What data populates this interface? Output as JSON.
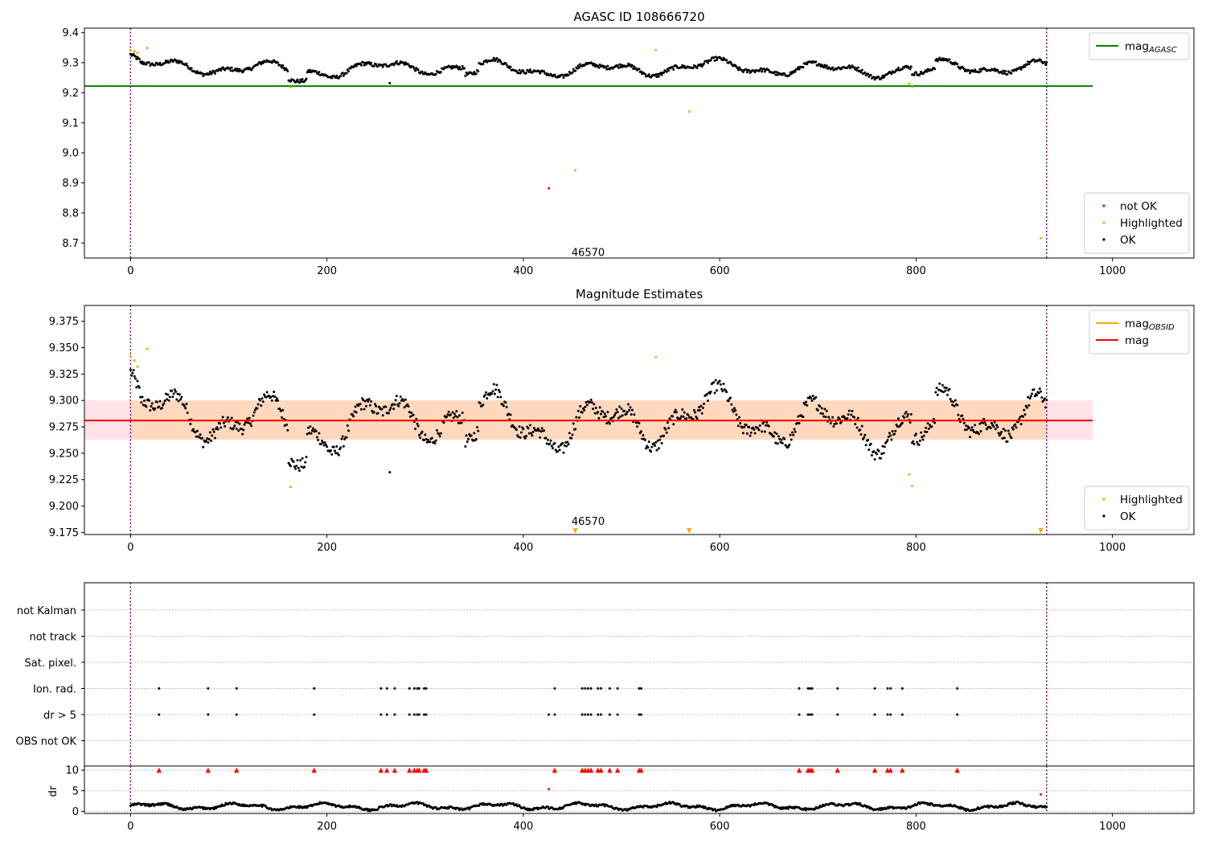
{
  "chart_data": [
    {
      "type": "scatter",
      "title": "AGASC ID 108666720",
      "xlim": [
        -47,
        1083
      ],
      "ylim": [
        8.65,
        9.415
      ],
      "xticks": [
        0,
        200,
        400,
        600,
        800,
        1000
      ],
      "yticks": [
        8.7,
        8.8,
        8.9,
        9.0,
        9.1,
        9.2,
        9.3,
        9.4
      ],
      "ytick_labels": [
        "8.7",
        "8.8",
        "8.9",
        "9.0",
        "9.1",
        "9.2",
        "9.3",
        "9.4"
      ],
      "obs_boundaries": [
        0,
        933
      ],
      "obsid_label": {
        "text": "46570",
        "x": 466,
        "y": 8.67
      },
      "hlines": [
        {
          "name": "mag_AGASC",
          "y": 9.222,
          "x": [
            -47,
            980
          ],
          "color": "#008000"
        }
      ],
      "series": [
        {
          "name": "not OK",
          "color": "#ff0000",
          "points": [
            [
              426,
              8.882
            ]
          ]
        },
        {
          "name": "Highlighted",
          "color": "#ffa500",
          "points": [
            [
              0,
              9.342
            ],
            [
              4,
              9.338
            ],
            [
              7,
              9.332
            ],
            [
              17,
              9.349
            ],
            [
              163,
              9.218
            ],
            [
              453,
              8.942
            ],
            [
              535,
              9.341
            ],
            [
              569,
              9.137
            ],
            [
              793,
              9.23
            ],
            [
              796,
              9.219
            ],
            [
              927,
              8.716
            ]
          ]
        },
        {
          "name": "OK",
          "color": "#000000",
          "baseline": "mag_series_main",
          "extra_points": [
            [
              264,
              9.232
            ]
          ]
        }
      ],
      "legends": [
        {
          "position": "upper-right",
          "entries": [
            {
              "label": "mag",
              "subscript": "AGASC",
              "color": "#008000",
              "kind": "line"
            }
          ]
        },
        {
          "position": "lower-right",
          "entries": [
            {
              "label": "not OK",
              "color": "#ff0000",
              "kind": "dot"
            },
            {
              "label": "Highlighted",
              "color": "#ffa500",
              "kind": "dot"
            },
            {
              "label": "OK",
              "color": "#000000",
              "kind": "dot"
            }
          ]
        }
      ]
    },
    {
      "type": "scatter",
      "title": "Magnitude Estimates",
      "xlim": [
        -47,
        1083
      ],
      "ylim": [
        9.173,
        9.39
      ],
      "xticks": [
        0,
        200,
        400,
        600,
        800,
        1000
      ],
      "yticks": [
        9.175,
        9.2,
        9.225,
        9.25,
        9.275,
        9.3,
        9.325,
        9.35,
        9.375
      ],
      "ytick_labels": [
        "9.175",
        "9.200",
        "9.225",
        "9.250",
        "9.275",
        "9.300",
        "9.325",
        "9.350",
        "9.375"
      ],
      "obs_boundaries": [
        0,
        933
      ],
      "obsid_label": {
        "text": "46570",
        "x": 466,
        "y": 9.179
      },
      "hlines": [
        {
          "name": "mag_OBSID",
          "y": 9.281,
          "x": [
            0,
            933
          ],
          "color": "#ffa500"
        },
        {
          "name": "mag",
          "y": 9.281,
          "x": [
            -47,
            980
          ],
          "color": "#ff0000"
        }
      ],
      "bands": [
        {
          "name": "mag band",
          "y": [
            9.263,
            9.3
          ],
          "x": [
            -47,
            980
          ],
          "color": "#ffc0cb"
        },
        {
          "name": "mag_OBSID band",
          "y": [
            9.263,
            9.3
          ],
          "x": [
            0,
            933
          ],
          "color": "#ffa500"
        }
      ],
      "series": [
        {
          "name": "Highlighted",
          "color": "#ffa500",
          "points": [
            [
              0,
              9.342
            ],
            [
              4,
              9.338
            ],
            [
              7,
              9.332
            ],
            [
              17,
              9.349
            ],
            [
              163,
              9.218
            ],
            [
              535,
              9.341
            ],
            [
              793,
              9.23
            ],
            [
              796,
              9.219
            ]
          ]
        },
        {
          "name": "Highlighted (below range)",
          "color": "#ffa500",
          "marker": "triangle-down",
          "points": [
            [
              453,
              9.175
            ],
            [
              569,
              9.175
            ],
            [
              927,
              9.175
            ]
          ]
        },
        {
          "name": "OK",
          "color": "#000000",
          "baseline": "mag_series_main",
          "extra_points": [
            [
              264,
              9.232
            ]
          ]
        }
      ],
      "legends": [
        {
          "position": "upper-right",
          "entries": [
            {
              "label": "mag",
              "subscript": "OBSID",
              "color": "#ffa500",
              "kind": "line"
            },
            {
              "label": "mag",
              "subscript": "",
              "color": "#ff0000",
              "kind": "line"
            }
          ]
        },
        {
          "position": "lower-right",
          "entries": [
            {
              "label": "Highlighted",
              "color": "#ffa500",
              "kind": "dot"
            },
            {
              "label": "OK",
              "color": "#000000",
              "kind": "dot"
            }
          ]
        }
      ]
    },
    {
      "type": "scatter",
      "title": "",
      "xlim": [
        -47,
        1083
      ],
      "obs_boundaries": [
        0,
        933
      ],
      "categories": [
        "not Kalman",
        "not track",
        "Sat. pixel.",
        "Ion. rad.",
        "dr > 5",
        "OBS not OK"
      ],
      "flag_series": [
        {
          "category": "Ion. rad.",
          "color": "#000000",
          "x": [
            29,
            79,
            108,
            187,
            255,
            261,
            269,
            284,
            289,
            292,
            294,
            299,
            301,
            432,
            460,
            463,
            466,
            469,
            476,
            479,
            488,
            496,
            518,
            520,
            681,
            690,
            692,
            694,
            720,
            758,
            771,
            774,
            786,
            842
          ]
        },
        {
          "category": "dr > 5",
          "color": "#000000",
          "x": [
            29,
            79,
            108,
            187,
            255,
            261,
            269,
            284,
            289,
            292,
            294,
            299,
            301,
            426,
            432,
            460,
            463,
            466,
            469,
            476,
            479,
            488,
            496,
            518,
            520,
            681,
            690,
            692,
            694,
            720,
            758,
            771,
            774,
            786,
            842
          ]
        }
      ]
    },
    {
      "type": "scatter",
      "title": "",
      "ylabel": "dr",
      "xlim": [
        -47,
        1083
      ],
      "ylim": [
        -0.5,
        11
      ],
      "xticks": [
        0,
        200,
        400,
        600,
        800,
        1000
      ],
      "yticks": [
        0,
        5,
        10
      ],
      "ytick_labels": [
        "0",
        "5",
        "10"
      ],
      "obs_boundaries": [
        0,
        933
      ],
      "series": [
        {
          "name": "dr clipped",
          "color": "#ff0000",
          "marker": "triangle-up",
          "points": [
            [
              29,
              10
            ],
            [
              79,
              10
            ],
            [
              108,
              10
            ],
            [
              187,
              10
            ],
            [
              255,
              10
            ],
            [
              261,
              10
            ],
            [
              269,
              10
            ],
            [
              284,
              10
            ],
            [
              289,
              10
            ],
            [
              292,
              10
            ],
            [
              294,
              10
            ],
            [
              299,
              10
            ],
            [
              301,
              10
            ],
            [
              432,
              10
            ],
            [
              460,
              10
            ],
            [
              463,
              10
            ],
            [
              466,
              10
            ],
            [
              469,
              10
            ],
            [
              476,
              10
            ],
            [
              479,
              10
            ],
            [
              488,
              10
            ],
            [
              496,
              10
            ],
            [
              518,
              10
            ],
            [
              520,
              10
            ],
            [
              681,
              10
            ],
            [
              690,
              10
            ],
            [
              692,
              10
            ],
            [
              694,
              10
            ],
            [
              720,
              10
            ],
            [
              758,
              10
            ],
            [
              771,
              10
            ],
            [
              774,
              10
            ],
            [
              786,
              10
            ],
            [
              842,
              10
            ]
          ]
        },
        {
          "name": "dr not OK",
          "color": "#ff0000",
          "points": [
            [
              426,
              5.4
            ],
            [
              927,
              4.1
            ]
          ]
        },
        {
          "name": "dr",
          "color": "#000000",
          "note": "continuous track of dr values between 0 and 2.3 for every sample"
        }
      ]
    }
  ]
}
